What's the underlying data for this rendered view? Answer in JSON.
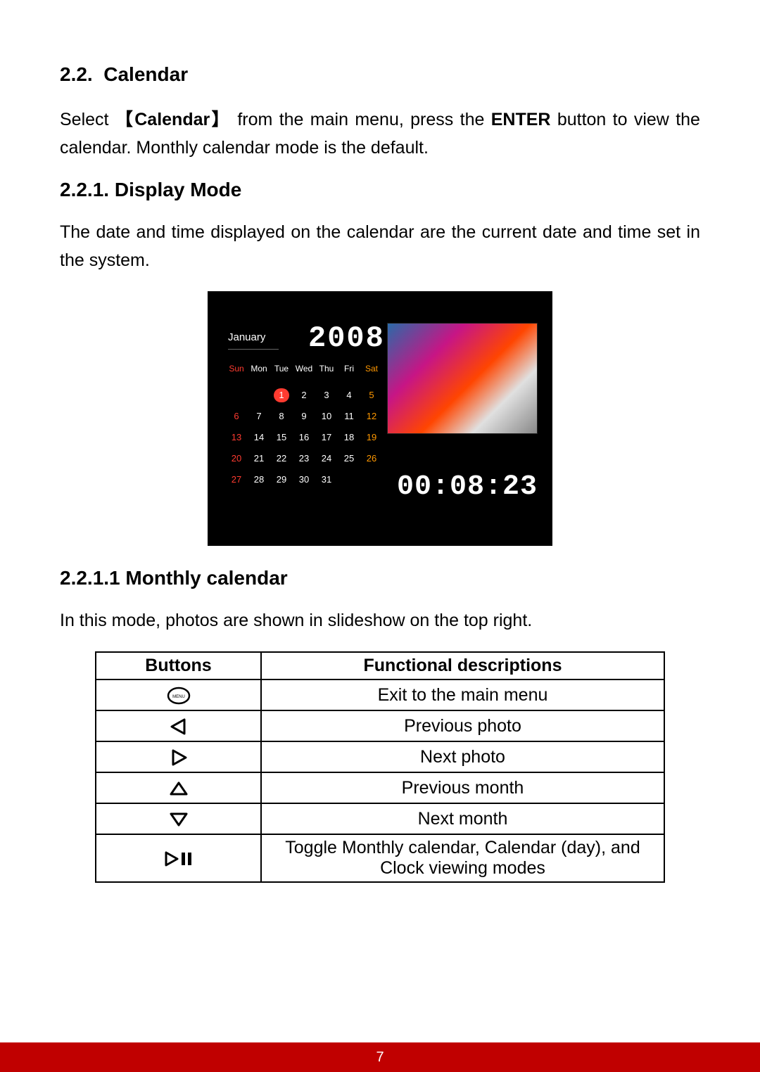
{
  "headings": {
    "h2_num": "2.2.",
    "h2_title": "Calendar",
    "h3_num": "2.2.1.",
    "h3_title": "Display Mode",
    "h4_num": "2.2.1.1",
    "h4_title": "Monthly calendar"
  },
  "text": {
    "p1_a": "Select",
    "p1_bold": "Calendar",
    "p1_b": "from the main menu, press the",
    "p1_bold2": "ENTER",
    "p1_c": "button to view the calendar.  Monthly calendar mode is the default.",
    "p2": "The date and time displayed on the calendar are the current date and time set in the system.",
    "p3": "In this mode, photos are shown in slideshow on the top right."
  },
  "device": {
    "month_label": "January",
    "year": "2008",
    "clock": "00:08:23",
    "day_headers": [
      "Sun",
      "Mon",
      "Tue",
      "Wed",
      "Thu",
      "Fri",
      "Sat"
    ],
    "weeks": [
      [
        "",
        "",
        "1",
        "2",
        "3",
        "4",
        "5"
      ],
      [
        "6",
        "7",
        "8",
        "9",
        "10",
        "11",
        "12"
      ],
      [
        "13",
        "14",
        "15",
        "16",
        "17",
        "18",
        "19"
      ],
      [
        "20",
        "21",
        "22",
        "23",
        "24",
        "25",
        "26"
      ],
      [
        "27",
        "28",
        "29",
        "30",
        "31",
        "",
        ""
      ]
    ],
    "today": "1",
    "colors": {
      "bg": "#000000",
      "text": "#ffffff",
      "sun": "#ff3b30",
      "sat": "#ff9800",
      "today_bg": "#ff3b30"
    }
  },
  "table": {
    "headers": [
      "Buttons",
      "Functional descriptions"
    ],
    "rows": [
      {
        "icon": "menu",
        "desc": "Exit to the main menu"
      },
      {
        "icon": "left",
        "desc": "Previous photo"
      },
      {
        "icon": "right",
        "desc": "Next photo"
      },
      {
        "icon": "up",
        "desc": "Previous month"
      },
      {
        "icon": "down",
        "desc": "Next month"
      },
      {
        "icon": "play-pause",
        "desc": "Toggle Monthly calendar, Calendar (day), and Clock viewing modes"
      }
    ]
  },
  "footer": {
    "page_number": "7",
    "bg": "#c00000"
  }
}
